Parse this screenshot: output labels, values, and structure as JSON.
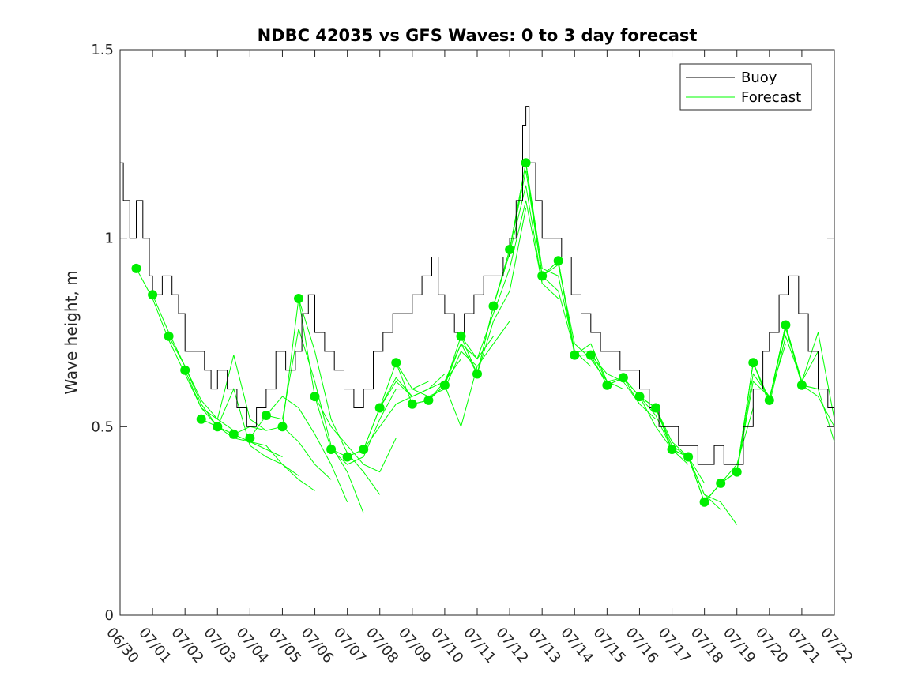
{
  "chart_data": {
    "type": "line",
    "title": "NDBC 42035 vs GFS Waves: 0 to 3 day forecast",
    "xlabel": "",
    "ylabel": "Wave height, m",
    "x_unit": "days since 06/30",
    "xlim": [
      0,
      22
    ],
    "ylim": [
      0,
      1.5
    ],
    "yticks": [
      0,
      0.5,
      1,
      1.5
    ],
    "ytick_labels": [
      "0",
      "0.5",
      "1",
      "1.5"
    ],
    "xtick_labels": [
      "06/30",
      "07/01",
      "07/02",
      "07/03",
      "07/04",
      "07/05",
      "07/06",
      "07/07",
      "07/08",
      "07/09",
      "07/10",
      "07/11",
      "07/12",
      "07/13",
      "07/14",
      "07/15",
      "07/16",
      "07/17",
      "07/18",
      "07/19",
      "07/20",
      "07/21",
      "07/22"
    ],
    "grid": false,
    "legend": {
      "position": "top-right",
      "entries": [
        "Buoy",
        "Forecast"
      ]
    },
    "colors": {
      "buoy": "#000000",
      "forecast": "#00ff00",
      "marker": "#00ee00"
    },
    "buoy": {
      "name": "Buoy",
      "x": [
        0,
        0.1,
        0.3,
        0.5,
        0.7,
        0.9,
        1.0,
        1.3,
        1.6,
        1.8,
        2.0,
        2.3,
        2.6,
        2.8,
        3.0,
        3.3,
        3.6,
        3.9,
        4.2,
        4.5,
        4.8,
        5.1,
        5.4,
        5.6,
        5.8,
        6.0,
        6.3,
        6.6,
        6.9,
        7.2,
        7.5,
        7.8,
        8.1,
        8.4,
        8.7,
        9.0,
        9.3,
        9.6,
        9.8,
        10.0,
        10.3,
        10.6,
        10.9,
        11.2,
        11.5,
        11.8,
        12.0,
        12.2,
        12.4,
        12.5,
        12.6,
        12.8,
        13.0,
        13.3,
        13.6,
        13.9,
        14.2,
        14.5,
        14.8,
        15.1,
        15.4,
        15.7,
        16.0,
        16.3,
        16.6,
        16.9,
        17.2,
        17.5,
        17.8,
        18.0,
        18.3,
        18.6,
        18.9,
        19.2,
        19.5,
        19.8,
        20.0,
        20.3,
        20.6,
        20.9,
        21.2,
        21.5,
        21.8,
        22.0
      ],
      "values": [
        1.2,
        1.1,
        1.0,
        1.1,
        1.0,
        0.9,
        0.85,
        0.9,
        0.85,
        0.8,
        0.7,
        0.7,
        0.65,
        0.6,
        0.65,
        0.6,
        0.55,
        0.5,
        0.55,
        0.6,
        0.7,
        0.65,
        0.7,
        0.8,
        0.85,
        0.75,
        0.7,
        0.65,
        0.6,
        0.55,
        0.6,
        0.7,
        0.75,
        0.8,
        0.8,
        0.85,
        0.9,
        0.95,
        0.85,
        0.8,
        0.75,
        0.8,
        0.85,
        0.9,
        0.9,
        0.95,
        1.0,
        1.1,
        1.3,
        1.35,
        1.2,
        1.1,
        1.0,
        1.0,
        0.95,
        0.85,
        0.8,
        0.75,
        0.7,
        0.7,
        0.65,
        0.65,
        0.6,
        0.55,
        0.5,
        0.5,
        0.45,
        0.45,
        0.4,
        0.4,
        0.45,
        0.4,
        0.4,
        0.5,
        0.6,
        0.7,
        0.75,
        0.85,
        0.9,
        0.8,
        0.7,
        0.6,
        0.55,
        0.5
      ]
    },
    "forecast_markers": {
      "x": [
        0.5,
        1.0,
        1.5,
        2.0,
        2.5,
        3.0,
        3.5,
        4.0,
        4.5,
        5.0,
        5.5,
        6.0,
        6.5,
        7.0,
        7.5,
        8.0,
        8.5,
        9.0,
        9.5,
        10.0,
        10.5,
        11.0,
        11.5,
        12.0,
        12.5,
        13.0,
        13.5,
        14.0,
        14.5,
        15.0,
        15.5,
        16.0,
        16.5,
        17.0,
        17.5,
        18.0,
        18.5,
        19.0,
        19.5,
        20.0,
        20.5,
        21.0
      ],
      "values": [
        0.92,
        0.85,
        0.74,
        0.65,
        0.52,
        0.5,
        0.48,
        0.47,
        0.53,
        0.5,
        0.84,
        0.58,
        0.44,
        0.42,
        0.44,
        0.55,
        0.67,
        0.56,
        0.57,
        0.61,
        0.74,
        0.64,
        0.82,
        0.97,
        1.2,
        0.9,
        0.94,
        0.69,
        0.69,
        0.61,
        0.63,
        0.58,
        0.55,
        0.44,
        0.42,
        0.3,
        0.35,
        0.38,
        0.67,
        0.57,
        0.77,
        0.61
      ]
    },
    "forecast_runs": [
      {
        "x": [
          0.5,
          1.0,
          1.5,
          2.0,
          2.5,
          3.0,
          3.5
        ],
        "values": [
          0.92,
          0.84,
          0.73,
          0.64,
          0.55,
          0.52,
          0.49
        ]
      },
      {
        "x": [
          1.0,
          1.5,
          2.0,
          2.5,
          3.0,
          3.5,
          4.0
        ],
        "values": [
          0.85,
          0.75,
          0.66,
          0.56,
          0.5,
          0.48,
          0.46
        ]
      },
      {
        "x": [
          1.5,
          2.0,
          2.5,
          3.0,
          3.5,
          4.0,
          4.5
        ],
        "values": [
          0.74,
          0.66,
          0.57,
          0.52,
          0.69,
          0.52,
          0.49
        ]
      },
      {
        "x": [
          2.0,
          2.5,
          3.0,
          3.5,
          4.0,
          4.5,
          5.0
        ],
        "values": [
          0.65,
          0.55,
          0.5,
          0.47,
          0.46,
          0.44,
          0.42
        ]
      },
      {
        "x": [
          2.5,
          3.0,
          3.5,
          4.0,
          4.5,
          5.0,
          5.5
        ],
        "values": [
          0.52,
          0.5,
          0.6,
          0.45,
          0.42,
          0.4,
          0.37
        ]
      },
      {
        "x": [
          3.0,
          3.5,
          4.0,
          4.5,
          5.0,
          5.5,
          6.0
        ],
        "values": [
          0.5,
          0.48,
          0.46,
          0.45,
          0.4,
          0.36,
          0.33
        ]
      },
      {
        "x": [
          3.5,
          4.0,
          4.5,
          5.0,
          5.5,
          6.0,
          6.5
        ],
        "values": [
          0.48,
          0.5,
          0.49,
          0.5,
          0.46,
          0.4,
          0.36
        ]
      },
      {
        "x": [
          4.0,
          4.5,
          5.0,
          5.5,
          6.0,
          6.5,
          7.0
        ],
        "values": [
          0.47,
          0.53,
          0.58,
          0.55,
          0.48,
          0.4,
          0.3
        ]
      },
      {
        "x": [
          4.5,
          5.0,
          5.5,
          6.0,
          6.5,
          7.0,
          7.5
        ],
        "values": [
          0.53,
          0.52,
          0.76,
          0.62,
          0.45,
          0.38,
          0.27
        ]
      },
      {
        "x": [
          5.0,
          5.5,
          6.0,
          6.5,
          7.0,
          7.5,
          8.0
        ],
        "values": [
          0.5,
          0.84,
          0.7,
          0.52,
          0.43,
          0.38,
          0.32
        ]
      },
      {
        "x": [
          5.5,
          6.0,
          6.5,
          7.0,
          7.5,
          8.0,
          8.5
        ],
        "values": [
          0.84,
          0.58,
          0.5,
          0.45,
          0.4,
          0.38,
          0.47
        ]
      },
      {
        "x": [
          6.0,
          6.5,
          7.0,
          7.5,
          8.0,
          8.5,
          9.0
        ],
        "values": [
          0.58,
          0.44,
          0.42,
          0.44,
          0.5,
          0.56,
          0.58
        ]
      },
      {
        "x": [
          6.5,
          7.0,
          7.5,
          8.0,
          8.5,
          9.0,
          9.5
        ],
        "values": [
          0.44,
          0.4,
          0.42,
          0.52,
          0.6,
          0.6,
          0.62
        ]
      },
      {
        "x": [
          7.0,
          7.5,
          8.0,
          8.5,
          9.0,
          9.5,
          10.0
        ],
        "values": [
          0.42,
          0.44,
          0.55,
          0.63,
          0.58,
          0.6,
          0.64
        ]
      },
      {
        "x": [
          7.5,
          8.0,
          8.5,
          9.0,
          9.5,
          10.0,
          10.5
        ],
        "values": [
          0.44,
          0.55,
          0.62,
          0.58,
          0.6,
          0.62,
          0.68
        ]
      },
      {
        "x": [
          8.0,
          8.5,
          9.0,
          9.5,
          10.0,
          10.5,
          11.0
        ],
        "values": [
          0.55,
          0.67,
          0.6,
          0.58,
          0.6,
          0.7,
          0.66
        ]
      },
      {
        "x": [
          8.5,
          9.0,
          9.5,
          10.0,
          10.5,
          11.0,
          11.5
        ],
        "values": [
          0.67,
          0.56,
          0.57,
          0.62,
          0.72,
          0.68,
          0.74
        ]
      },
      {
        "x": [
          9.0,
          9.5,
          10.0,
          10.5,
          11.0,
          11.5,
          12.0
        ],
        "values": [
          0.56,
          0.57,
          0.61,
          0.5,
          0.66,
          0.72,
          0.78
        ]
      },
      {
        "x": [
          9.5,
          10.0,
          10.5,
          11.0,
          11.5,
          12.0,
          12.5
        ],
        "values": [
          0.57,
          0.61,
          0.72,
          0.64,
          0.78,
          0.86,
          1.08
        ]
      },
      {
        "x": [
          10.0,
          10.5,
          11.0,
          11.5,
          12.0,
          12.5,
          13.0
        ],
        "values": [
          0.61,
          0.74,
          0.68,
          0.8,
          0.92,
          1.1,
          0.88
        ]
      },
      {
        "x": [
          10.5,
          11.0,
          11.5,
          12.0,
          12.5,
          13.0,
          13.5
        ],
        "values": [
          0.74,
          0.64,
          0.82,
          0.96,
          1.14,
          0.88,
          0.84
        ]
      },
      {
        "x": [
          11.0,
          11.5,
          12.0,
          12.5,
          13.0,
          13.5,
          14.0
        ],
        "values": [
          0.64,
          0.82,
          0.97,
          1.18,
          0.9,
          0.86,
          0.7
        ]
      },
      {
        "x": [
          11.5,
          12.0,
          12.5,
          13.0,
          13.5,
          14.0,
          14.5
        ],
        "values": [
          0.82,
          0.97,
          1.2,
          0.92,
          0.9,
          0.7,
          0.66
        ]
      },
      {
        "x": [
          12.0,
          12.5,
          13.0,
          13.5,
          14.0,
          14.5,
          15.0
        ],
        "values": [
          0.97,
          1.2,
          0.9,
          0.93,
          0.72,
          0.68,
          0.62
        ]
      },
      {
        "x": [
          12.5,
          13.0,
          13.5,
          14.0,
          14.5,
          15.0,
          15.5
        ],
        "values": [
          1.2,
          0.9,
          0.94,
          0.7,
          0.7,
          0.62,
          0.6
        ]
      },
      {
        "x": [
          13.0,
          13.5,
          14.0,
          14.5,
          15.0,
          15.5,
          16.0
        ],
        "values": [
          0.9,
          0.94,
          0.69,
          0.72,
          0.62,
          0.63,
          0.56
        ]
      },
      {
        "x": [
          13.5,
          14.0,
          14.5,
          15.0,
          15.5,
          16.0,
          16.5
        ],
        "values": [
          0.94,
          0.69,
          0.69,
          0.64,
          0.62,
          0.56,
          0.52
        ]
      },
      {
        "x": [
          14.0,
          14.5,
          15.0,
          15.5,
          16.0,
          16.5,
          17.0
        ],
        "values": [
          0.69,
          0.69,
          0.61,
          0.63,
          0.58,
          0.5,
          0.44
        ]
      },
      {
        "x": [
          14.5,
          15.0,
          15.5,
          16.0,
          16.5,
          17.0,
          17.5
        ],
        "values": [
          0.69,
          0.61,
          0.63,
          0.58,
          0.53,
          0.44,
          0.4
        ]
      },
      {
        "x": [
          15.0,
          15.5,
          16.0,
          16.5,
          17.0,
          17.5,
          18.0
        ],
        "values": [
          0.61,
          0.63,
          0.58,
          0.55,
          0.45,
          0.42,
          0.35
        ]
      },
      {
        "x": [
          15.5,
          16.0,
          16.5,
          17.0,
          17.5,
          18.0,
          18.5
        ],
        "values": [
          0.63,
          0.58,
          0.55,
          0.46,
          0.42,
          0.32,
          0.28
        ]
      },
      {
        "x": [
          16.0,
          16.5,
          17.0,
          17.5,
          18.0,
          18.5,
          19.0
        ],
        "values": [
          0.58,
          0.55,
          0.44,
          0.42,
          0.32,
          0.3,
          0.24
        ]
      },
      {
        "x": [
          16.5,
          17.0,
          17.5,
          18.0,
          18.5,
          19.0,
          19.5
        ],
        "values": [
          0.55,
          0.44,
          0.42,
          0.3,
          0.35,
          0.4,
          0.55
        ]
      },
      {
        "x": [
          17.0,
          17.5,
          18.0,
          18.5,
          19.0,
          19.5,
          20.0
        ],
        "values": [
          0.44,
          0.42,
          0.3,
          0.35,
          0.38,
          0.62,
          0.58
        ]
      },
      {
        "x": [
          17.5,
          18.0,
          18.5,
          19.0,
          19.5,
          20.0,
          20.5
        ],
        "values": [
          0.42,
          0.3,
          0.35,
          0.38,
          0.64,
          0.58,
          0.72
        ]
      },
      {
        "x": [
          18.0,
          18.5,
          19.0,
          19.5,
          20.0,
          20.5,
          21.0
        ],
        "values": [
          0.3,
          0.35,
          0.38,
          0.67,
          0.56,
          0.74,
          0.62
        ]
      },
      {
        "x": [
          18.5,
          19.0,
          19.5,
          20.0,
          20.5,
          21.0,
          21.5
        ],
        "values": [
          0.35,
          0.38,
          0.67,
          0.57,
          0.76,
          0.62,
          0.7
        ]
      },
      {
        "x": [
          19.0,
          19.5,
          20.0,
          20.5,
          21.0,
          21.5,
          22.0
        ],
        "values": [
          0.38,
          0.67,
          0.57,
          0.77,
          0.62,
          0.75,
          0.52
        ]
      },
      {
        "x": [
          19.5,
          20.0,
          20.5,
          21.0,
          21.5,
          22.0
        ],
        "values": [
          0.67,
          0.57,
          0.77,
          0.61,
          0.6,
          0.46
        ]
      },
      {
        "x": [
          20.0,
          20.5,
          21.0,
          21.5,
          22.0
        ],
        "values": [
          0.57,
          0.77,
          0.61,
          0.58,
          0.5
        ]
      }
    ]
  }
}
